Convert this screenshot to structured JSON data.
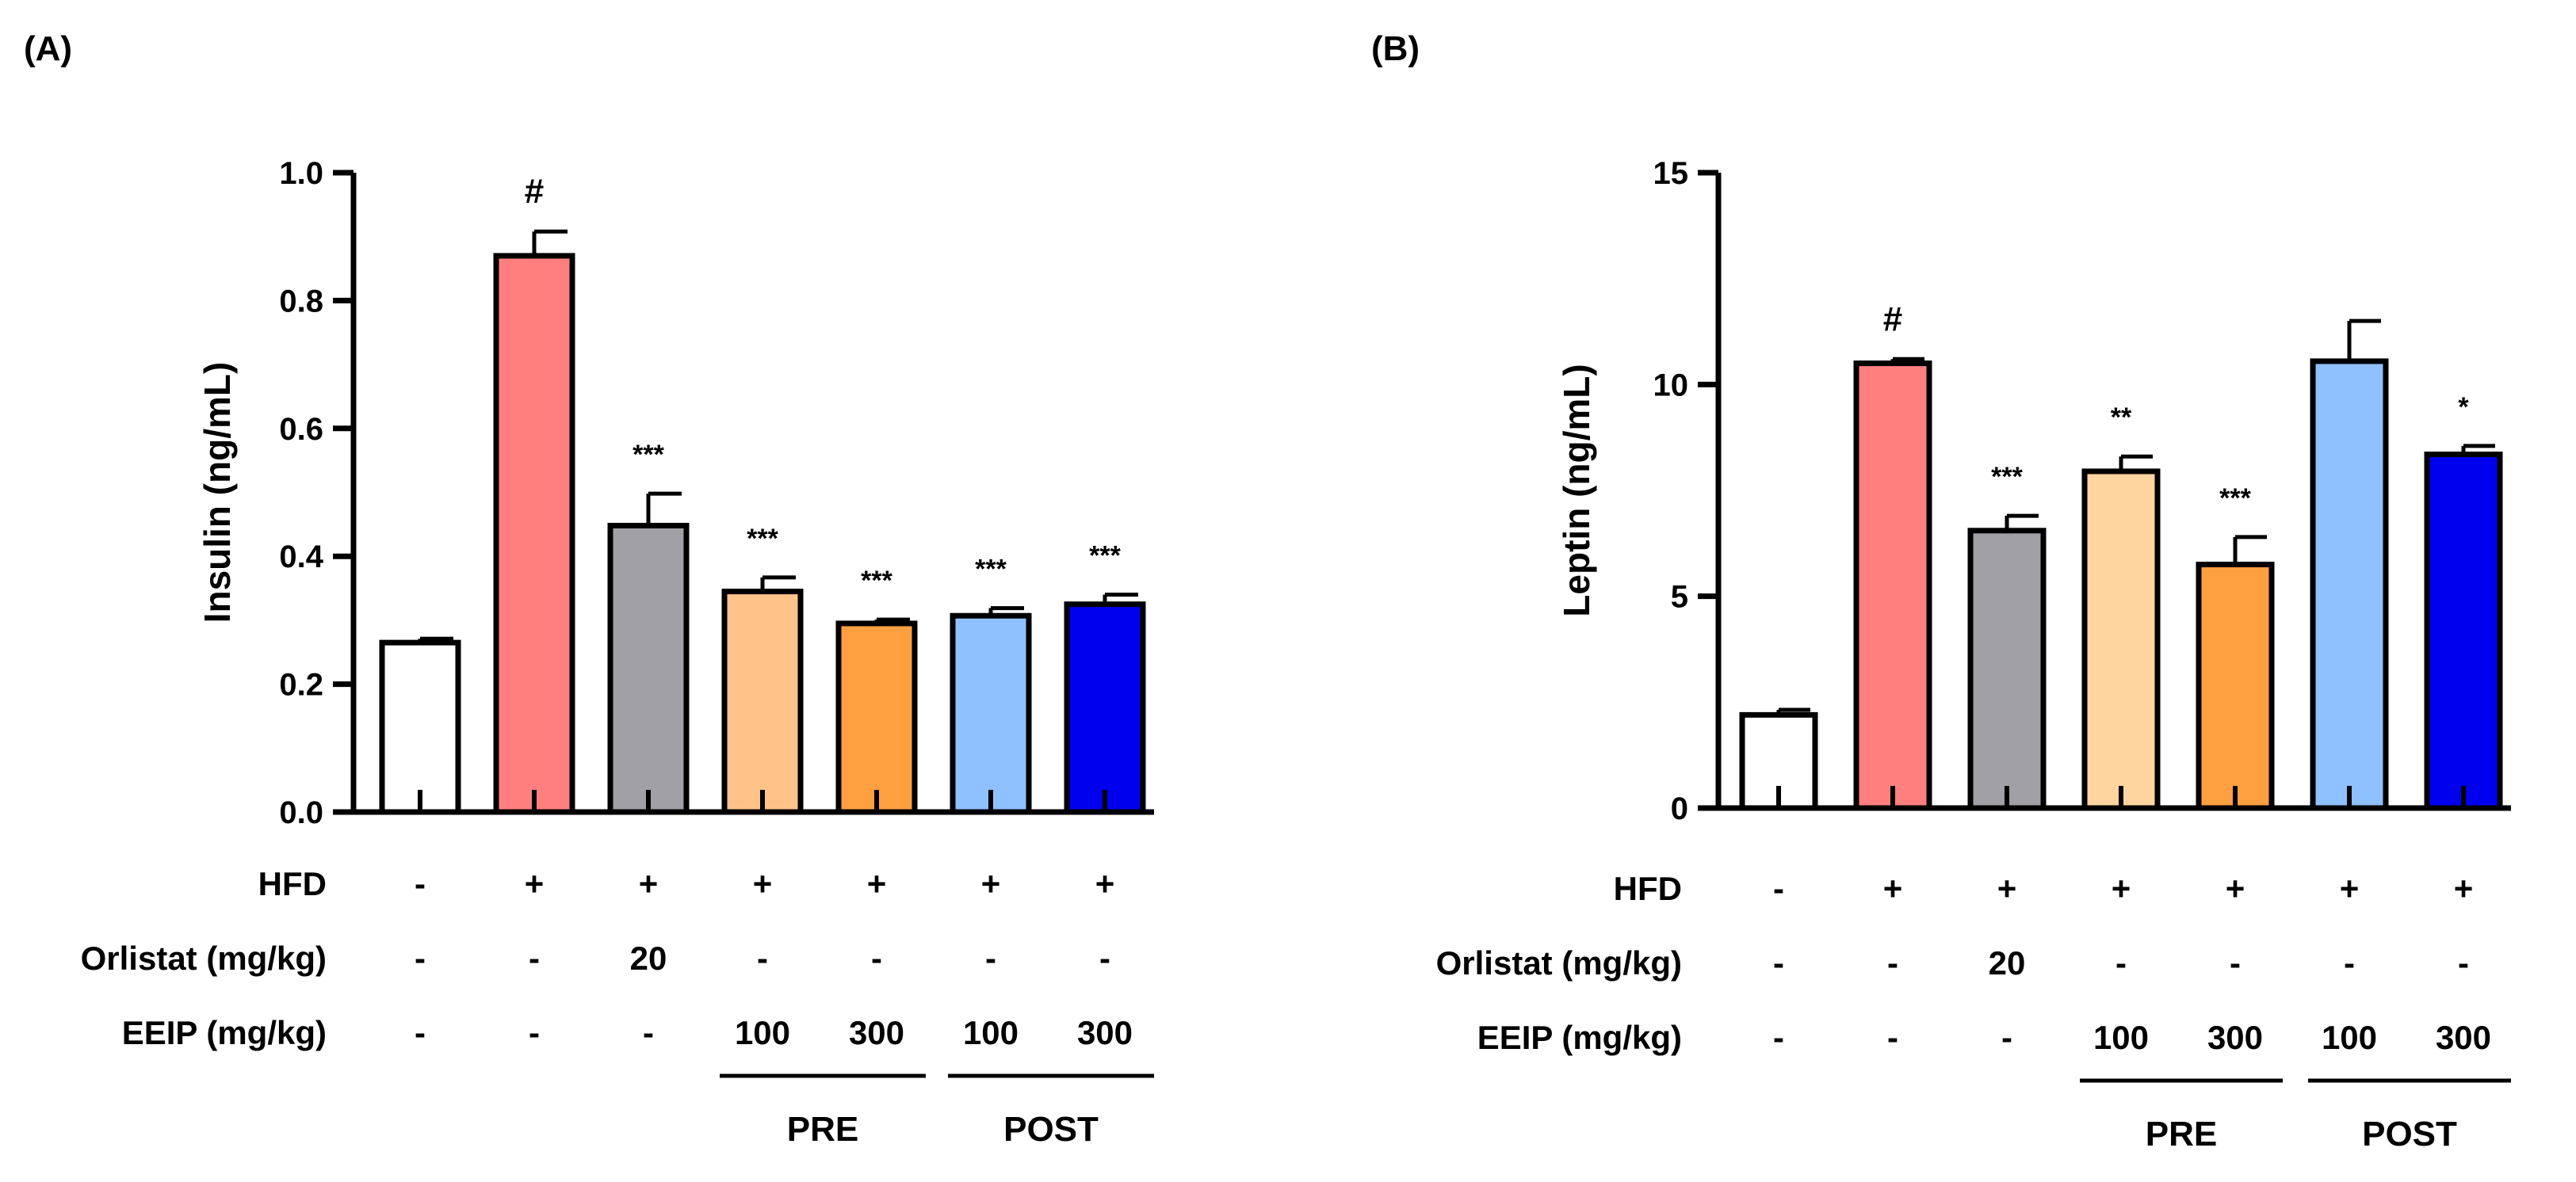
{
  "chart_data": [
    {
      "type": "bar",
      "panel_label": "(A)",
      "ylabel": "Insulin (ng/mL)",
      "ylim": [
        0,
        1.0
      ],
      "yticks": [
        "0.0",
        "0.2",
        "0.4",
        "0.6",
        "0.8",
        "1.0"
      ],
      "bars": [
        {
          "value": 0.265,
          "error": 0.006,
          "color": "#ffffff",
          "sig": ""
        },
        {
          "value": 0.87,
          "error": 0.038,
          "color": "#ff7f7f",
          "sig": "#"
        },
        {
          "value": 0.448,
          "error": 0.05,
          "color": "#a0a0a6",
          "sig": "***"
        },
        {
          "value": 0.345,
          "error": 0.022,
          "color": "#ffc38a",
          "sig": "***"
        },
        {
          "value": 0.295,
          "error": 0.006,
          "color": "#ffa040",
          "sig": "***"
        },
        {
          "value": 0.307,
          "error": 0.012,
          "color": "#8fc0ff",
          "sig": "***"
        },
        {
          "value": 0.325,
          "error": 0.015,
          "color": "#0000ee",
          "sig": "***"
        }
      ],
      "rows": [
        {
          "label": "HFD",
          "cells": [
            "-",
            "+",
            "+",
            "+",
            "+",
            "+",
            "+"
          ]
        },
        {
          "label": "Orlistat (mg/kg)",
          "cells": [
            "-",
            "-",
            "20",
            "-",
            "-",
            "-",
            "-"
          ]
        },
        {
          "label": "EEIP (mg/kg)",
          "cells": [
            "-",
            "-",
            "-",
            "100",
            "300",
            "100",
            "300"
          ]
        }
      ],
      "groups": [
        {
          "label": "PRE",
          "from": 3,
          "to": 4
        },
        {
          "label": "POST",
          "from": 5,
          "to": 6
        }
      ]
    },
    {
      "type": "bar",
      "panel_label": "(B)",
      "ylabel": "Leptin (ng/mL)",
      "ylim": [
        0,
        15
      ],
      "yticks": [
        "0",
        "5",
        "10",
        "15"
      ],
      "bars": [
        {
          "value": 2.2,
          "error": 0.12,
          "color": "#ffffff",
          "sig": ""
        },
        {
          "value": 10.5,
          "error": 0.1,
          "color": "#ff7f7f",
          "sig": "#"
        },
        {
          "value": 6.55,
          "error": 0.35,
          "color": "#a0a0a6",
          "sig": "***"
        },
        {
          "value": 7.95,
          "error": 0.35,
          "color": "#ffd59f",
          "sig": "**"
        },
        {
          "value": 5.75,
          "error": 0.65,
          "color": "#ffa040",
          "sig": "***"
        },
        {
          "value": 10.55,
          "error": 0.95,
          "color": "#8fc0ff",
          "sig": ""
        },
        {
          "value": 8.35,
          "error": 0.2,
          "color": "#0000ee",
          "sig": "*"
        }
      ],
      "rows": [
        {
          "label": "HFD",
          "cells": [
            "-",
            "+",
            "+",
            "+",
            "+",
            "+",
            "+"
          ]
        },
        {
          "label": "Orlistat (mg/kg)",
          "cells": [
            "-",
            "-",
            "20",
            "-",
            "-",
            "-",
            "-"
          ]
        },
        {
          "label": "EEIP (mg/kg)",
          "cells": [
            "-",
            "-",
            "-",
            "100",
            "300",
            "100",
            "300"
          ]
        }
      ],
      "groups": [
        {
          "label": "PRE",
          "from": 3,
          "to": 4
        },
        {
          "label": "POST",
          "from": 5,
          "to": 6
        }
      ]
    }
  ]
}
